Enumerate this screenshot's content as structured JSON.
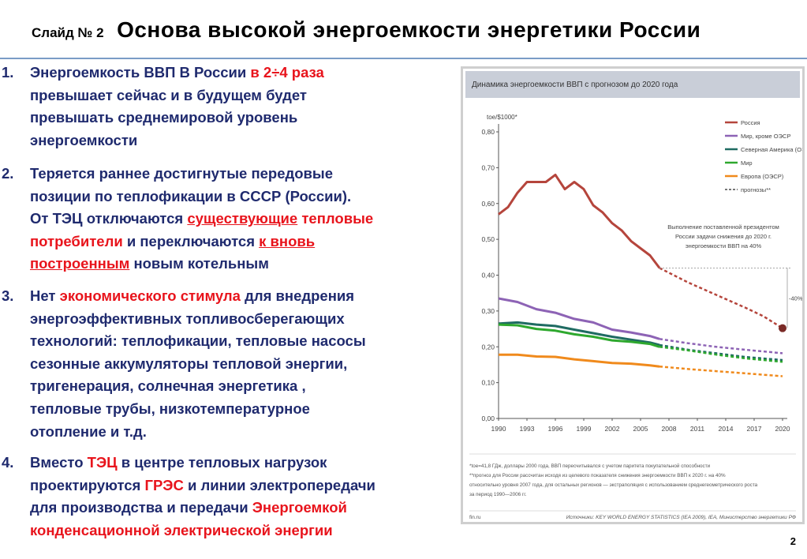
{
  "header": {
    "slide_label": "Слайд № 2",
    "title": "Основа  высокой  энергоемкости  энергетики России"
  },
  "items": [
    {
      "num": "1.",
      "lines": [
        [
          {
            "t": "Энергоемкость  ВВП  В России  "
          },
          {
            "t": "в 2÷4  раза",
            "c": "red"
          }
        ],
        [
          {
            "t": "превышает сейчас и в будущем будет"
          }
        ],
        [
          {
            "t": "превышать среднемировой уровень"
          }
        ],
        [
          {
            "t": "энергоемкости"
          }
        ]
      ]
    },
    {
      "num": "2.",
      "lines": [
        [
          {
            "t": "Теряется  раннее достигнутые  передовые"
          }
        ],
        [
          {
            "t": "позиции по теплофикации  в СССР  (России)."
          }
        ],
        [
          {
            "t": "От ТЭЦ отключаются  "
          },
          {
            "t": "существующие",
            "c": "red",
            "u": true
          },
          {
            "t": " тепловые",
            "c": "red"
          }
        ],
        [
          {
            "t": "потребители",
            "c": "red"
          },
          {
            "t": "  и  переключаются   "
          },
          {
            "t": " к вновь",
            "c": "red",
            "u": true
          }
        ],
        [
          {
            "t": "построенным",
            "c": "red",
            "u": true
          },
          {
            "t": " новым котельным"
          }
        ]
      ]
    },
    {
      "num": "3.",
      "lines": [
        [
          {
            "t": "Нет "
          },
          {
            "t": "экономического  стимула",
            "c": "red"
          },
          {
            "t": " для   внедрения"
          }
        ],
        [
          {
            "t": "энергоэффективных топливосберегающих"
          }
        ],
        [
          {
            "t": "технологий:  теплофикации,  тепловые насосы"
          }
        ],
        [
          {
            "t": "сезонные аккумуляторы тепловой энергии,"
          }
        ],
        [
          {
            "t": "тригенерация,    солнечная энергетика ,"
          }
        ],
        [
          {
            "t": "тепловые трубы, низкотемпературное"
          }
        ],
        [
          {
            "t": "отопление и т.д."
          }
        ]
      ]
    },
    {
      "num": "4.",
      "lines": [
        [
          {
            "t": "Вместо  "
          },
          {
            "t": "ТЭЦ",
            "c": "red"
          },
          {
            "t": "  в центре тепловых нагрузок"
          }
        ],
        [
          {
            "t": "проектируются  "
          },
          {
            "t": "ГРЭС",
            "c": "red"
          },
          {
            "t": " и линии электропередачи"
          }
        ],
        [
          {
            "t": "для производства и передачи  "
          },
          {
            "t": "Энергоемкой",
            "c": "red"
          }
        ],
        [
          {
            "t": "конденсационной  электрической энергии",
            "c": "red"
          }
        ]
      ]
    }
  ],
  "chart_data": {
    "type": "line",
    "title": "Динамика энергоемкости ВВП с прогнозом до 2020 года",
    "ylabel": "toe/$1000*",
    "ylim": [
      0,
      0.8
    ],
    "xlim": [
      1990,
      2020
    ],
    "x_ticks": [
      "1990",
      "1993",
      "1996",
      "1999",
      "2002",
      "2005",
      "2008",
      "2011",
      "2014",
      "2017",
      "2020"
    ],
    "y_ticks": [
      "0,00",
      "0,10",
      "0,20",
      "0,30",
      "0,40",
      "0,50",
      "0,60",
      "0,70",
      "0,80"
    ],
    "series": [
      {
        "name": "Россия",
        "color": "#b5453c",
        "actual": [
          [
            1990,
            0.57
          ],
          [
            1991,
            0.59
          ],
          [
            1992,
            0.63
          ],
          [
            1993,
            0.66
          ],
          [
            1994,
            0.66
          ],
          [
            1995,
            0.66
          ],
          [
            1996,
            0.68
          ],
          [
            1997,
            0.64
          ],
          [
            1998,
            0.66
          ],
          [
            1999,
            0.64
          ],
          [
            2000,
            0.595
          ],
          [
            2001,
            0.575
          ],
          [
            2002,
            0.545
          ],
          [
            2003,
            0.525
          ],
          [
            2004,
            0.495
          ],
          [
            2005,
            0.475
          ],
          [
            2006,
            0.455
          ],
          [
            2007,
            0.42
          ]
        ],
        "forecast": [
          [
            2007,
            0.42
          ],
          [
            2010,
            0.38
          ],
          [
            2013,
            0.345
          ],
          [
            2016,
            0.31
          ],
          [
            2018,
            0.285
          ],
          [
            2020,
            0.252
          ]
        ]
      },
      {
        "name": "Мир, кроме ОЭСР",
        "color": "#8d63b5",
        "actual": [
          [
            1990,
            0.335
          ],
          [
            1992,
            0.325
          ],
          [
            1994,
            0.305
          ],
          [
            1996,
            0.295
          ],
          [
            1998,
            0.278
          ],
          [
            2000,
            0.268
          ],
          [
            2002,
            0.248
          ],
          [
            2004,
            0.24
          ],
          [
            2006,
            0.23
          ],
          [
            2007,
            0.222
          ]
        ],
        "forecast": [
          [
            2007,
            0.222
          ],
          [
            2010,
            0.21
          ],
          [
            2013,
            0.2
          ],
          [
            2016,
            0.192
          ],
          [
            2020,
            0.182
          ]
        ]
      },
      {
        "name": "Северная Америка (ОЭСР)",
        "color": "#1f6b62",
        "actual": [
          [
            1990,
            0.265
          ],
          [
            1992,
            0.268
          ],
          [
            1994,
            0.262
          ],
          [
            1996,
            0.258
          ],
          [
            1998,
            0.248
          ],
          [
            2000,
            0.238
          ],
          [
            2002,
            0.228
          ],
          [
            2004,
            0.22
          ],
          [
            2006,
            0.212
          ],
          [
            2007,
            0.205
          ]
        ],
        "forecast": [
          [
            2007,
            0.205
          ],
          [
            2010,
            0.192
          ],
          [
            2013,
            0.182
          ],
          [
            2016,
            0.172
          ],
          [
            2020,
            0.163
          ]
        ]
      },
      {
        "name": "Мир",
        "color": "#2ea82e",
        "actual": [
          [
            1990,
            0.262
          ],
          [
            1992,
            0.26
          ],
          [
            1994,
            0.25
          ],
          [
            1996,
            0.245
          ],
          [
            1998,
            0.235
          ],
          [
            2000,
            0.228
          ],
          [
            2002,
            0.218
          ],
          [
            2004,
            0.214
          ],
          [
            2006,
            0.208
          ],
          [
            2007,
            0.2
          ]
        ],
        "forecast": [
          [
            2007,
            0.2
          ],
          [
            2010,
            0.19
          ],
          [
            2013,
            0.178
          ],
          [
            2016,
            0.168
          ],
          [
            2020,
            0.158
          ]
        ]
      },
      {
        "name": "Европа (ОЭСР)",
        "color": "#f08a1c",
        "actual": [
          [
            1990,
            0.178
          ],
          [
            1992,
            0.178
          ],
          [
            1994,
            0.173
          ],
          [
            1996,
            0.172
          ],
          [
            1998,
            0.165
          ],
          [
            2000,
            0.16
          ],
          [
            2002,
            0.155
          ],
          [
            2004,
            0.153
          ],
          [
            2006,
            0.148
          ],
          [
            2007,
            0.145
          ]
        ],
        "forecast": [
          [
            2007,
            0.145
          ],
          [
            2010,
            0.138
          ],
          [
            2013,
            0.132
          ],
          [
            2016,
            0.126
          ],
          [
            2020,
            0.118
          ]
        ]
      }
    ],
    "legend_forecast_label": "прогнозы**",
    "annotation": [
      "Выполнение поставленной президентом",
      "России задачи снижения до 2020 г.",
      "энергоемкости ВВП на 40%"
    ],
    "change_label": "-40%",
    "footnotes": [
      "*toe=41,8 ГДж, доллары 2000 года, ВВП пересчитывался с учетом паритета покупательной способности",
      "**прогноз для России рассчитан исходя из целевого показателя снижения энергоемкости ВВП к 2020 г. на 40%",
      "относительно уровня 2007 года, для остальных регионов — экстраполяция с использованием среднегеометрического роста",
      "за период 1990—2006 гг."
    ],
    "source_site": "fin.ru",
    "source_text": "Источники: KEY WORLD ENERGY STATISTICS (IEA 2009), IEA, Министерство энергетики РФ"
  },
  "page_number": "2"
}
